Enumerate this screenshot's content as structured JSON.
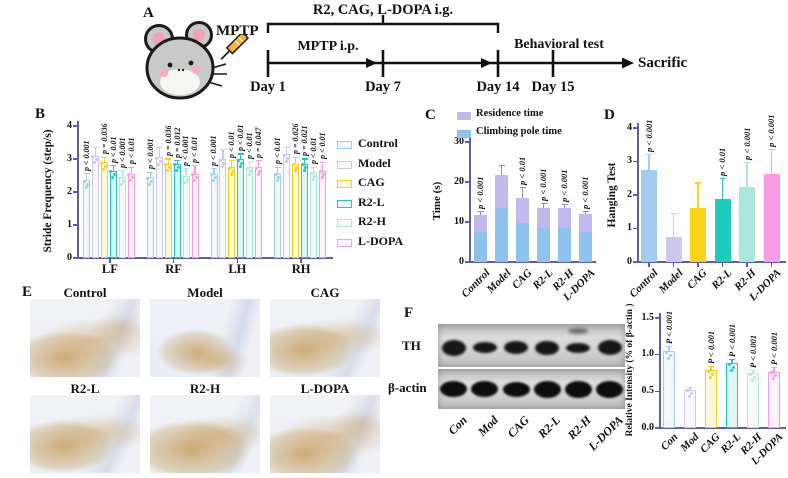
{
  "panels": {
    "a": {
      "label": "A",
      "mptp": "MPTP",
      "top_treatment": "R2, CAG, L-DOPA  i.g.",
      "mptp_ip": "MPTP  i.p.",
      "behavioral": "Behavioral test",
      "sacrifice": "Sacrific",
      "days": [
        "Day 1",
        "Day 7",
        "Day 14",
        "Day 15"
      ]
    },
    "b": {
      "label": "B"
    },
    "c": {
      "label": "C"
    },
    "d": {
      "label": "D"
    },
    "e": {
      "label": "E",
      "images": [
        {
          "label": "Control"
        },
        {
          "label": "Model"
        },
        {
          "label": "CAG"
        },
        {
          "label": "R2-L"
        },
        {
          "label": "R2-H"
        },
        {
          "label": "L-DOPA"
        }
      ]
    },
    "f": {
      "label": "F",
      "blot_rows": [
        "TH",
        "β-actin"
      ],
      "lanes": [
        "Con",
        "Mod",
        "CAG",
        "R2-L",
        "R2-H",
        "L-DOPA"
      ]
    }
  },
  "colors": {
    "axis": "#5f5da8",
    "control": "#a3cbf1",
    "model": "#cfc6ee",
    "cag": "#f7d117",
    "r2l": "#1fc9bb",
    "r2h": "#b2e8dc",
    "ldopa": "#f99ae4",
    "climbing": "#8fc3ec",
    "residence": "#c3b8ec"
  },
  "chart_data": [
    {
      "panel": "B",
      "type": "bar",
      "grouped": true,
      "title": "",
      "xlabel": "",
      "ylabel": "Stride Frequency (step/s)",
      "ylim": [
        0,
        4
      ],
      "yticks": [
        0,
        1,
        2,
        3,
        4
      ],
      "categories": [
        "LF",
        "RF",
        "LH",
        "RH"
      ],
      "show_points": true,
      "series": [
        {
          "name": "Control",
          "color": "#a3cbf1",
          "values": [
            2.35,
            2.45,
            2.55,
            2.55
          ],
          "errors": [
            0.2,
            0.15,
            0.15,
            0.2
          ],
          "p_labels": [
            "p < 0.001",
            "p < 0.001",
            "p < 0.001",
            "p < 0.01"
          ]
        },
        {
          "name": "Model",
          "color": "#cfc6ee",
          "values": [
            3.1,
            3.05,
            3.0,
            3.15
          ],
          "errors": [
            0.25,
            0.3,
            0.3,
            0.2
          ],
          "p_labels": [
            null,
            null,
            null,
            null
          ]
        },
        {
          "name": "CAG",
          "color": "#f7d117",
          "values": [
            2.9,
            2.85,
            2.75,
            2.85
          ],
          "errors": [
            0.15,
            0.15,
            0.2,
            0.2
          ],
          "p_labels": [
            "p = 0.036",
            "p = 0.036",
            "p < 0.01",
            "p = 0.026"
          ]
        },
        {
          "name": "R2-L",
          "color": "#1fc9bb",
          "values": [
            2.65,
            2.85,
            3.0,
            2.85
          ],
          "errors": [
            0.15,
            0.1,
            0.15,
            0.15
          ],
          "p_labels": [
            "p < 0.01",
            "p = 0.012",
            "p < 0.01",
            "p = 0.021"
          ]
        },
        {
          "name": "R2-H",
          "color": "#b2e8dc",
          "values": [
            2.45,
            2.5,
            2.75,
            2.6
          ],
          "errors": [
            0.2,
            0.2,
            0.15,
            0.15
          ],
          "p_labels": [
            "p < 0.001",
            "p < 0.001",
            "p < 0.01",
            "p < 0.01"
          ]
        },
        {
          "name": "L-DOPA",
          "color": "#f99ae4",
          "values": [
            2.55,
            2.55,
            2.75,
            2.65
          ],
          "errors": [
            0.2,
            0.25,
            0.2,
            0.25
          ],
          "p_labels": [
            "p < 0.01",
            "p < 0.01",
            "p = 0.047",
            "p < 0.01"
          ]
        }
      ]
    },
    {
      "panel": "C",
      "type": "stacked-bar",
      "title": "",
      "xlabel": "",
      "ylabel": "Time (s)",
      "ylim": [
        0,
        30
      ],
      "yticks": [
        0,
        10,
        20,
        30
      ],
      "categories": [
        "Control",
        "Model",
        "CAG",
        "R2-L",
        "R2-H",
        "L-DOPA"
      ],
      "series": [
        {
          "name": "Climbing pole time",
          "color": "#8fc3ec",
          "values": [
            7.5,
            13.5,
            9.8,
            8.5,
            8.4,
            7.4
          ]
        },
        {
          "name": "Residence time",
          "color": "#c3b8ec",
          "values": [
            4.3,
            8.2,
            6.3,
            5.1,
            5.0,
            4.5
          ]
        }
      ],
      "errors_total": [
        0.9,
        2.5,
        2.5,
        1.0,
        0.9,
        0.8
      ],
      "p_labels": [
        "p < 0.001",
        null,
        "p < 0.01",
        "p < 0.001",
        "p < 0.001",
        "p < 0.001"
      ],
      "legend": [
        "Residence time",
        "Climbing pole time"
      ]
    },
    {
      "panel": "D",
      "type": "bar",
      "title": "",
      "xlabel": "",
      "ylabel": "Hanging Test",
      "ylim": [
        0,
        4
      ],
      "yticks": [
        0,
        1,
        2,
        3,
        4
      ],
      "categories": [
        "Control",
        "Model",
        "CAG",
        "R2-L",
        "R2-H",
        "L-DOPA"
      ],
      "colors": [
        "#a3cbf1",
        "#cfc6ee",
        "#ffd21a",
        "#1fc9bb",
        "#abe7da",
        "#f99ae4"
      ],
      "values": [
        2.75,
        0.75,
        1.6,
        1.87,
        2.25,
        2.62
      ],
      "errors": [
        0.45,
        0.7,
        0.76,
        0.63,
        0.72,
        0.73
      ],
      "p_labels": [
        "p < 0.001",
        null,
        null,
        "p < 0.01",
        "p < 0.001",
        "p < 0.001"
      ]
    },
    {
      "panel": "F",
      "type": "bar",
      "title": "",
      "xlabel": "",
      "ylabel": "Relative Intensity (% of β-actin )",
      "ylim": [
        0,
        1.5
      ],
      "yticks": [
        0,
        0.5,
        1,
        1.5
      ],
      "categories": [
        "Con",
        "Mod",
        "CAG",
        "R2-L",
        "R2-H",
        "L-DOPA"
      ],
      "colors": [
        "#a3cbf1",
        "#cfc6ee",
        "#f7d117",
        "#1fc9bb",
        "#b2e8dc",
        "#f99ae4"
      ],
      "values": [
        1.05,
        0.52,
        0.79,
        0.88,
        0.75,
        0.77
      ],
      "errors": [
        0.06,
        0.03,
        0.05,
        0.05,
        0.03,
        0.05
      ],
      "p_labels": [
        "P < 0.001",
        null,
        "P < 0.001",
        "P < 0.001",
        "P < 0.001",
        "P < 0.001"
      ],
      "show_points": true
    }
  ]
}
